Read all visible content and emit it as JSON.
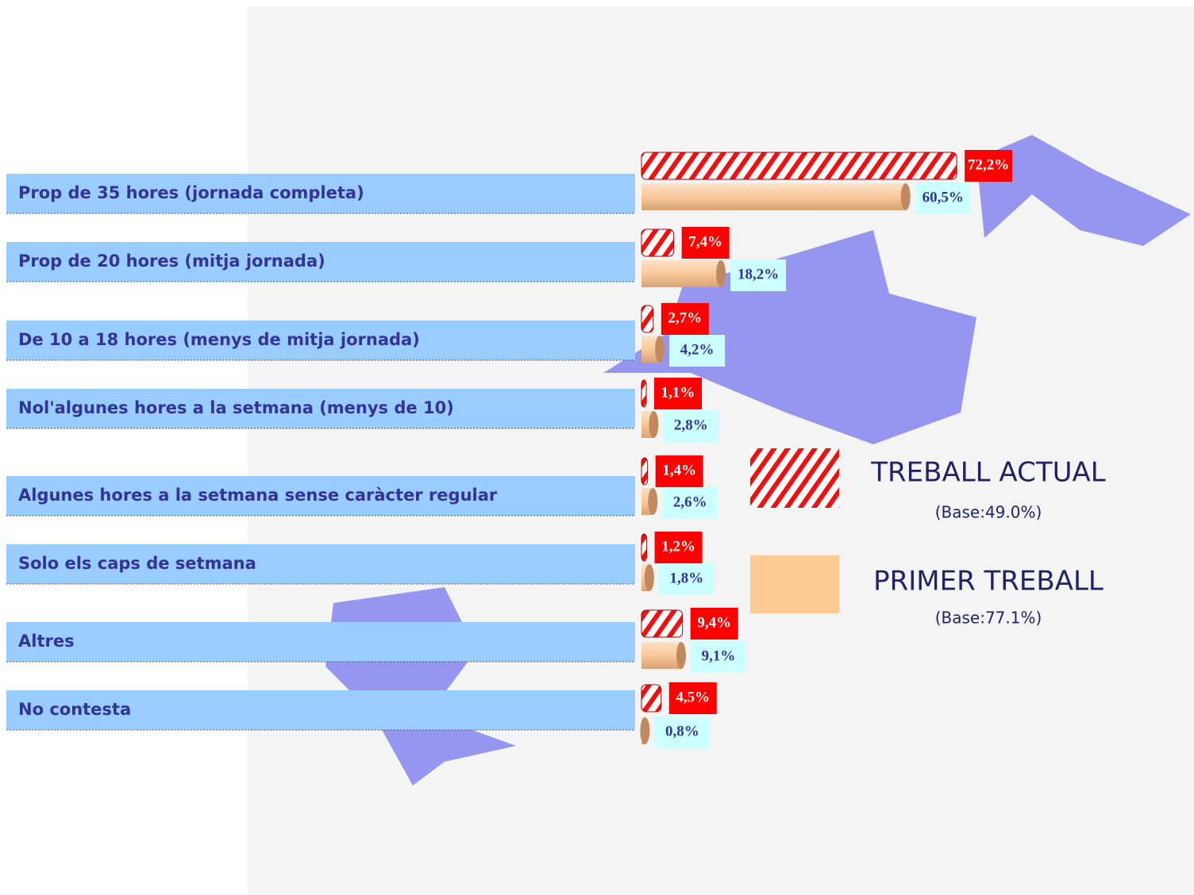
{
  "chart_data": {
    "type": "bar",
    "orientation": "horizontal",
    "categories": [
      "Prop de 35 hores (jornada completa)",
      "Prop de 20 hores (mitja jornada)",
      "De 10 a 18 hores (menys de mitja jornada)",
      "Nol'algunes hores a la setmana (menys de 10)",
      "Algunes hores a la setmana sense caràcter regular",
      "Solo els caps de setmana",
      "Altres",
      "No contesta"
    ],
    "series": [
      {
        "name": "TREBALL ACTUAL",
        "base": "(Base:49.0%)",
        "color": "#ee1111",
        "values": [
          72.2,
          7.4,
          2.7,
          1.1,
          1.4,
          1.2,
          9.4,
          4.5
        ],
        "value_labels": [
          "72,2%",
          "7,4%",
          "2,7%",
          "1,1%",
          "1,4%",
          "1,2%",
          "9,4%",
          "4,5%"
        ]
      },
      {
        "name": "PRIMER TREBALL",
        "base": "(Base:77.1%)",
        "color": "#f9c99a",
        "values": [
          60.5,
          18.2,
          4.2,
          2.8,
          2.6,
          1.8,
          9.1,
          0.8
        ],
        "value_labels": [
          "60,5%",
          "18,2%",
          "4,2%",
          "2,8%",
          "2,6%",
          "1,8%",
          "9,1%",
          "0,8%"
        ]
      }
    ]
  }
}
